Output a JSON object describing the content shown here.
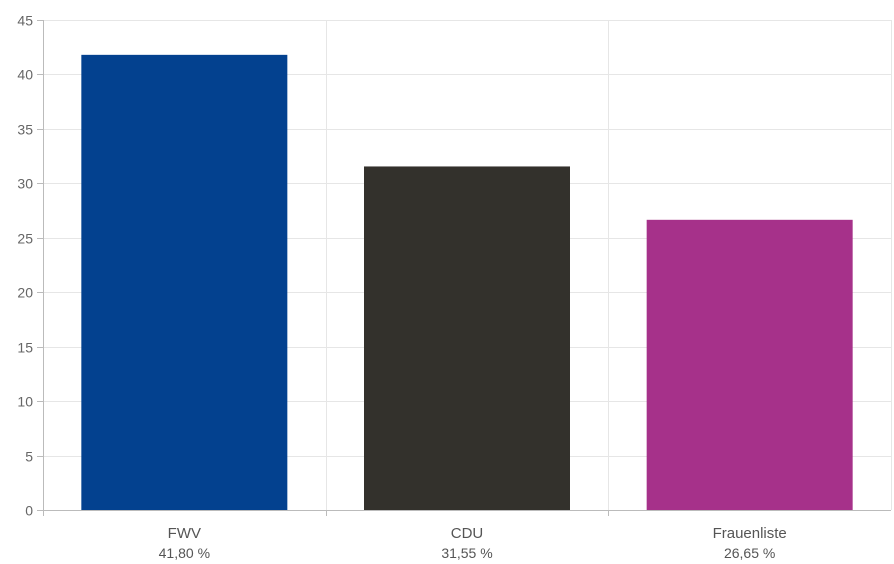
{
  "chart_data": {
    "type": "bar",
    "categories": [
      "FWV",
      "CDU",
      "Frauenliste"
    ],
    "values": [
      41.8,
      31.55,
      26.65
    ],
    "value_labels": [
      "41,80 %",
      "31,55 %",
      "26,65 %"
    ],
    "colors": [
      "#03418F",
      "#33312C",
      "#A6318A"
    ],
    "ylim": [
      0,
      45
    ],
    "yticks": [
      0,
      5,
      10,
      15,
      20,
      25,
      30,
      35,
      40,
      45
    ],
    "title": "",
    "xlabel": "",
    "ylabel": "",
    "grid": true,
    "legend": "none"
  }
}
